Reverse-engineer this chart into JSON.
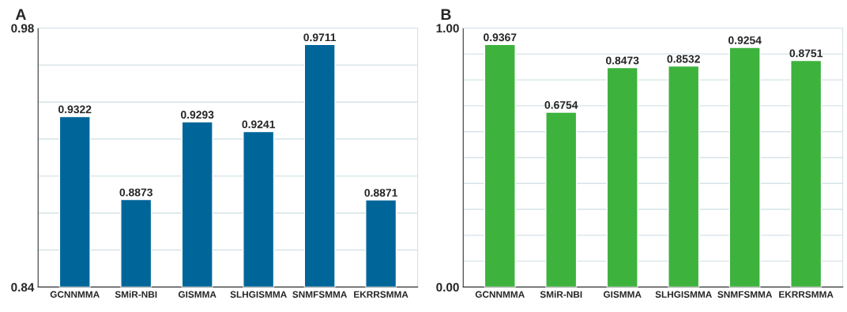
{
  "chart_data": [
    {
      "type": "bar",
      "title": "A",
      "categories": [
        "GCNNMMA",
        "SMiR-NBI",
        "GISMMA",
        "SLHGISMMA",
        "SNMFSMMA",
        "EKRRSMMA"
      ],
      "values": [
        0.9322,
        0.8873,
        0.9293,
        0.9241,
        0.9711,
        0.8871
      ],
      "color": "#006699",
      "ylim": [
        0.84,
        0.98
      ],
      "yticks": [
        {
          "value": 0.84,
          "label": "0.84"
        },
        {
          "value": 0.86,
          "label": null
        },
        {
          "value": 0.88,
          "label": null
        },
        {
          "value": 0.9,
          "label": null
        },
        {
          "value": 0.92,
          "label": null
        },
        {
          "value": 0.94,
          "label": null
        },
        {
          "value": 0.96,
          "label": null
        },
        {
          "value": 0.98,
          "label": "0.98"
        }
      ],
      "grid": "y",
      "data_labels": true
    },
    {
      "type": "bar",
      "title": "B",
      "categories": [
        "GCNNMMA",
        "SMiR-NBI",
        "GISMMA",
        "SLHGISMMA",
        "SNMFSMMA",
        "EKRRSMMA"
      ],
      "values": [
        0.9367,
        0.6754,
        0.8473,
        0.8532,
        0.9254,
        0.8751
      ],
      "color": "#3db23d",
      "ylim": [
        0.0,
        1.0
      ],
      "yticks": [
        {
          "value": 0.0,
          "label": "0.00"
        },
        {
          "value": 0.1,
          "label": null
        },
        {
          "value": 0.2,
          "label": null
        },
        {
          "value": 0.3,
          "label": null
        },
        {
          "value": 0.4,
          "label": null
        },
        {
          "value": 0.5,
          "label": null
        },
        {
          "value": 0.6,
          "label": null
        },
        {
          "value": 0.7,
          "label": null
        },
        {
          "value": 0.8,
          "label": null
        },
        {
          "value": 0.9,
          "label": null
        },
        {
          "value": 1.0,
          "label": "1.00"
        }
      ],
      "grid": "y",
      "data_labels": true
    }
  ]
}
